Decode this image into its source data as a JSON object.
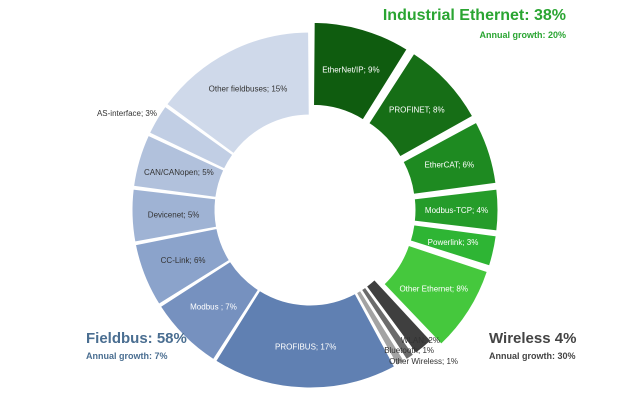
{
  "chart_data": {
    "type": "pie",
    "groups": [
      {
        "name": "Industrial Ethernet",
        "title": "Industrial Ethernet: 38%",
        "growth": "Annual growth: 20%"
      },
      {
        "name": "Wireless",
        "title": "Wireless 4%",
        "growth": "Annual growth: 30%"
      },
      {
        "name": "Fieldbus",
        "title": "Fieldbus: 58%",
        "growth": "Annual growth: 7%"
      }
    ],
    "slices": [
      {
        "label": "EtherNet/IP; 9%",
        "value": 9,
        "group": "Industrial Ethernet",
        "color": "#0f5c0f",
        "text_color": "#ffffff",
        "exploded": true
      },
      {
        "label": "PROFINET; 8%",
        "value": 8,
        "group": "Industrial Ethernet",
        "color": "#166e16",
        "text_color": "#ffffff",
        "exploded": true
      },
      {
        "label": "EtherCAT; 6%",
        "value": 6,
        "group": "Industrial Ethernet",
        "color": "#1e8a21",
        "text_color": "#ffffff",
        "exploded": true
      },
      {
        "label": "Modbus-TCP; 4%",
        "value": 4,
        "group": "Industrial Ethernet",
        "color": "#259c2a",
        "text_color": "#ffffff",
        "exploded": true
      },
      {
        "label": "Powerlink; 3%",
        "value": 3,
        "group": "Industrial Ethernet",
        "color": "#2eb534",
        "text_color": "#ffffff",
        "exploded": true
      },
      {
        "label": "Other Ethernet; 8%",
        "value": 8,
        "group": "Industrial Ethernet",
        "color": "#45c83d",
        "text_color": "#ffffff",
        "exploded": true
      },
      {
        "label": "WLAN; 2%",
        "value": 2,
        "group": "Wireless",
        "color": "#3f3f3f",
        "text_color": "#333333",
        "exploded": false
      },
      {
        "label": "Bluetooth; 1%",
        "value": 1,
        "group": "Wireless",
        "color": "#6b6b6b",
        "text_color": "#333333",
        "exploded": false
      },
      {
        "label": "Other Wireless; 1%",
        "value": 1,
        "group": "Wireless",
        "color": "#a3a3a3",
        "text_color": "#333333",
        "exploded": false
      },
      {
        "label": "PROFIBUS; 17%",
        "value": 17,
        "group": "Fieldbus",
        "color": "#6080b2",
        "text_color": "#ffffff",
        "exploded": false
      },
      {
        "label": "Modbus ; 7%",
        "value": 7,
        "group": "Fieldbus",
        "color": "#7691bf",
        "text_color": "#ffffff",
        "exploded": false
      },
      {
        "label": "CC-Link; 6%",
        "value": 6,
        "group": "Fieldbus",
        "color": "#8ba3cb",
        "text_color": "#333333",
        "exploded": false
      },
      {
        "label": "Devicenet; 5%",
        "value": 5,
        "group": "Fieldbus",
        "color": "#9fb3d4",
        "text_color": "#333333",
        "exploded": false
      },
      {
        "label": "CAN/CANopen; 5%",
        "value": 5,
        "group": "Fieldbus",
        "color": "#b1c1dc",
        "text_color": "#333333",
        "exploded": false
      },
      {
        "label": "AS-interface; 3%",
        "value": 3,
        "group": "Fieldbus",
        "color": "#c1cee4",
        "text_color": "#333333",
        "exploded": false
      },
      {
        "label": "Other fieldbuses; 15%",
        "value": 15,
        "group": "Fieldbus",
        "color": "#cfd9ea",
        "text_color": "#333333",
        "exploded": false
      }
    ],
    "legend": "none"
  }
}
